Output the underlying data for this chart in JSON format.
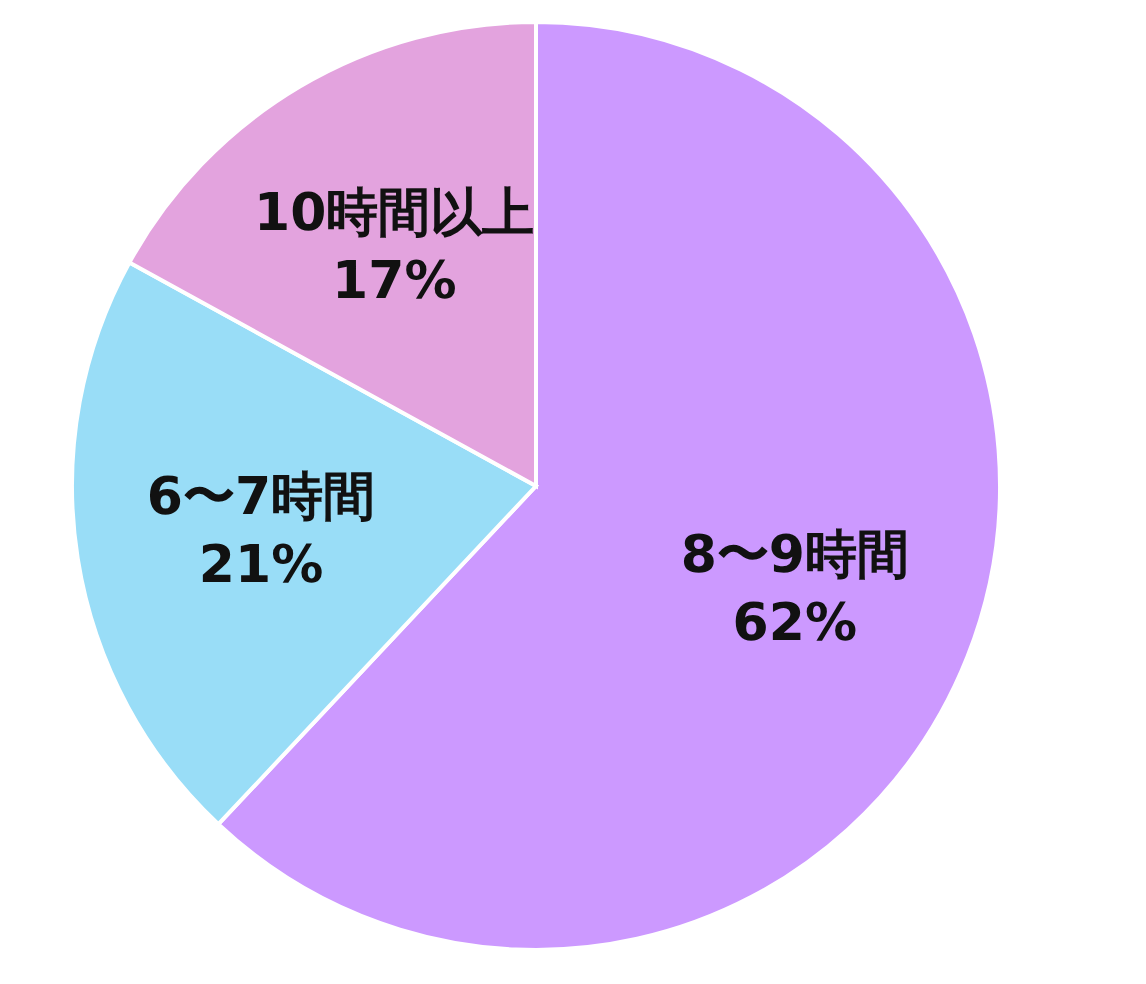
{
  "chart_data": {
    "type": "pie",
    "categories": [
      "8〜9時間",
      "6〜7時間",
      "10時間以上"
    ],
    "values": [
      62,
      21,
      17
    ],
    "colors": [
      "#cc99ff",
      "#99ddf7",
      "#e3a3de"
    ],
    "value_labels": [
      "62%",
      "21%",
      "17%"
    ]
  }
}
